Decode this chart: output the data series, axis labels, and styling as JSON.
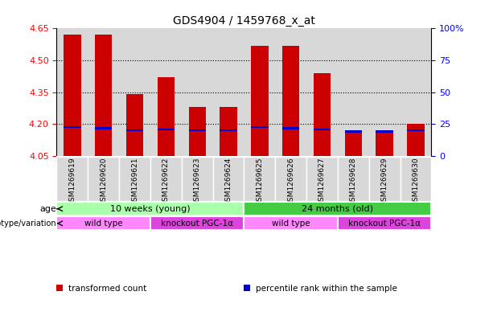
{
  "title": "GDS4904 / 1459768_x_at",
  "samples": [
    "GSM1269619",
    "GSM1269620",
    "GSM1269621",
    "GSM1269622",
    "GSM1269623",
    "GSM1269624",
    "GSM1269625",
    "GSM1269626",
    "GSM1269627",
    "GSM1269628",
    "GSM1269629",
    "GSM1269630"
  ],
  "bar_bottom": 4.05,
  "transformed_counts": [
    4.62,
    4.62,
    4.34,
    4.42,
    4.28,
    4.28,
    4.57,
    4.57,
    4.44,
    4.17,
    4.17,
    4.2
  ],
  "percentile_positions": [
    4.185,
    4.18,
    4.17,
    4.175,
    4.17,
    4.17,
    4.185,
    4.18,
    4.175,
    4.165,
    4.165,
    4.17
  ],
  "ylim_left": [
    4.05,
    4.65
  ],
  "ylim_right": [
    0,
    100
  ],
  "yticks_left": [
    4.05,
    4.2,
    4.35,
    4.5,
    4.65
  ],
  "yticks_right": [
    0,
    25,
    50,
    75,
    100
  ],
  "ytick_labels_right": [
    "0",
    "25",
    "50",
    "75",
    "100%"
  ],
  "bar_color": "#cc0000",
  "percentile_color": "#0000cc",
  "grid_color": "#000000",
  "col_bg_color": "#d8d8d8",
  "plot_bg_color": "#ffffff",
  "fig_bg_color": "#ffffff",
  "age_groups": [
    {
      "label": "10 weeks (young)",
      "start": 0,
      "end": 6,
      "color": "#aaffaa"
    },
    {
      "label": "24 months (old)",
      "start": 6,
      "end": 12,
      "color": "#44cc44"
    }
  ],
  "genotype_groups": [
    {
      "label": "wild type",
      "start": 0,
      "end": 3,
      "color": "#ff88ff"
    },
    {
      "label": "knockout PGC-1α",
      "start": 3,
      "end": 6,
      "color": "#dd44dd"
    },
    {
      "label": "wild type",
      "start": 6,
      "end": 9,
      "color": "#ff88ff"
    },
    {
      "label": "knockout PGC-1α",
      "start": 9,
      "end": 12,
      "color": "#dd44dd"
    }
  ],
  "legend_items": [
    {
      "label": "transformed count",
      "color": "#cc0000"
    },
    {
      "label": "percentile rank within the sample",
      "color": "#0000cc"
    }
  ],
  "row_labels": [
    "age",
    "genotype/variation"
  ],
  "title_fontsize": 10,
  "tick_fontsize": 8,
  "label_fontsize": 8,
  "bar_width": 0.55
}
